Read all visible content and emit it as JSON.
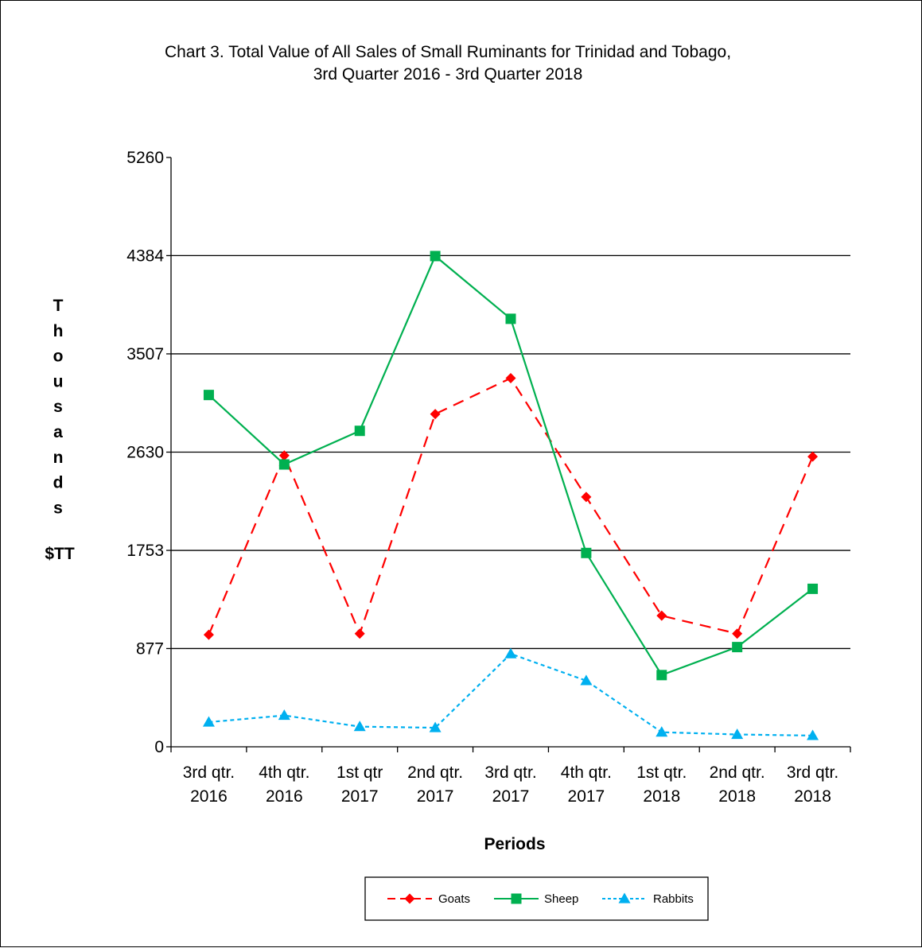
{
  "chart_data": {
    "type": "line",
    "title": "Chart 3. Total Value  of All Sales of Small Ruminants  for Trinidad and Tobago,",
    "subtitle": "3rd Quarter 2016  - 3rd Quarter 2018",
    "xlabel": "Periods",
    "ylabel_letters": [
      "T",
      "h",
      "o",
      "u",
      "s",
      "a",
      "n",
      "d",
      "s"
    ],
    "ylabel_unit": "$TT",
    "ylim": [
      0,
      5260
    ],
    "yticks": [
      0,
      877,
      1753,
      2630,
      3507,
      4384,
      5260
    ],
    "categories": [
      [
        "3rd qtr.",
        "2016"
      ],
      [
        "4th qtr.",
        "2016"
      ],
      [
        "1st qtr",
        "2017"
      ],
      [
        "2nd qtr.",
        "2017"
      ],
      [
        "3rd qtr.",
        "2017"
      ],
      [
        "4th qtr.",
        "2017"
      ],
      [
        "1st qtr.",
        "2018"
      ],
      [
        "2nd qtr.",
        "2018"
      ],
      [
        "3rd qtr.",
        "2018"
      ]
    ],
    "grid": "horizontal",
    "legend_position": "bottom",
    "series": [
      {
        "name": "Goats",
        "color": "#ff0000",
        "dash": "long-dash",
        "marker": "diamond",
        "values": [
          1000,
          2600,
          1010,
          2970,
          3290,
          2230,
          1170,
          1010,
          2590
        ]
      },
      {
        "name": "Sheep",
        "color": "#00b050",
        "dash": "solid",
        "marker": "square",
        "values": [
          3140,
          2520,
          2820,
          4380,
          3820,
          1730,
          640,
          890,
          1410
        ]
      },
      {
        "name": "Rabbits",
        "color": "#00b0f0",
        "dash": "short-dash",
        "marker": "triangle",
        "values": [
          220,
          280,
          180,
          170,
          830,
          590,
          130,
          110,
          100
        ]
      }
    ]
  }
}
